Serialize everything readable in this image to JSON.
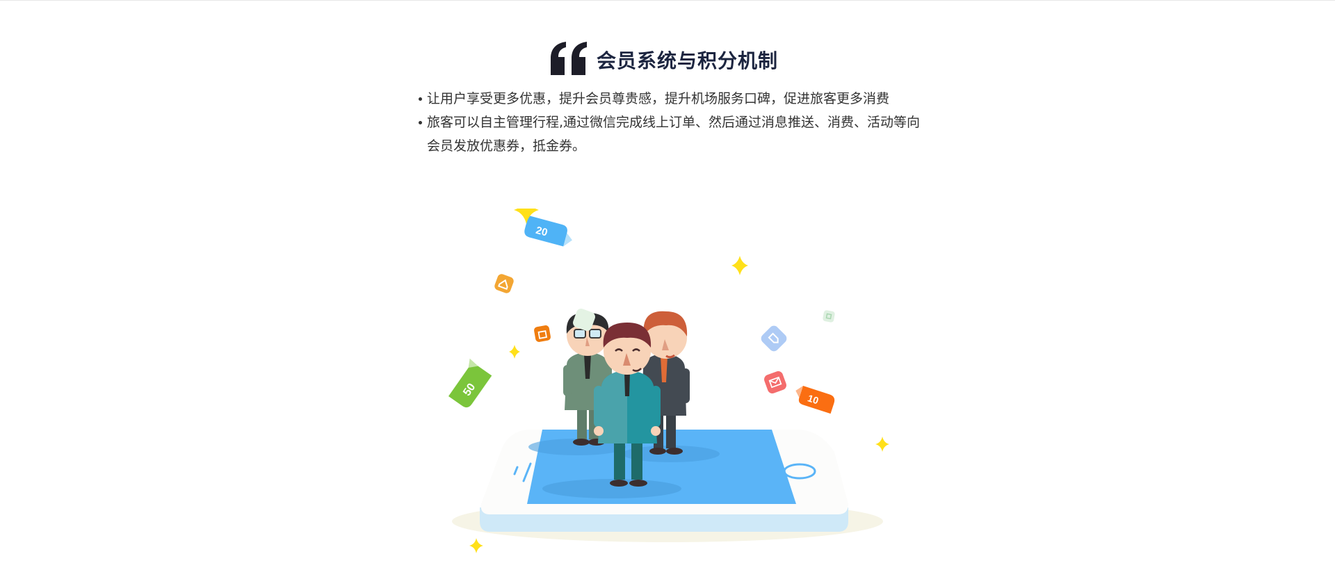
{
  "section": {
    "title": "会员系统与积分机制",
    "bullets": [
      "让用户享受更多优惠，提升会员尊贵感，提升机场服务口碑，促进旅客更多消费",
      "旅客可以自主管理行程,通过微信完成线上订单、然后通过消息推送、消费、活动等向会员发放优惠券，抵金券。"
    ]
  },
  "illustration": {
    "coupons": [
      "20",
      "50",
      "10"
    ],
    "icons": [
      "home-icon",
      "bag-icon",
      "tag-icon",
      "mail-icon",
      "chat-icon",
      "sparkle-icon"
    ],
    "colors": {
      "screen": "#5ab4f7",
      "sparkle": "#ffe01a",
      "coupon_blue": "#4fb3f6",
      "coupon_green": "#7bc53b",
      "coupon_orange": "#fa6e12"
    }
  }
}
